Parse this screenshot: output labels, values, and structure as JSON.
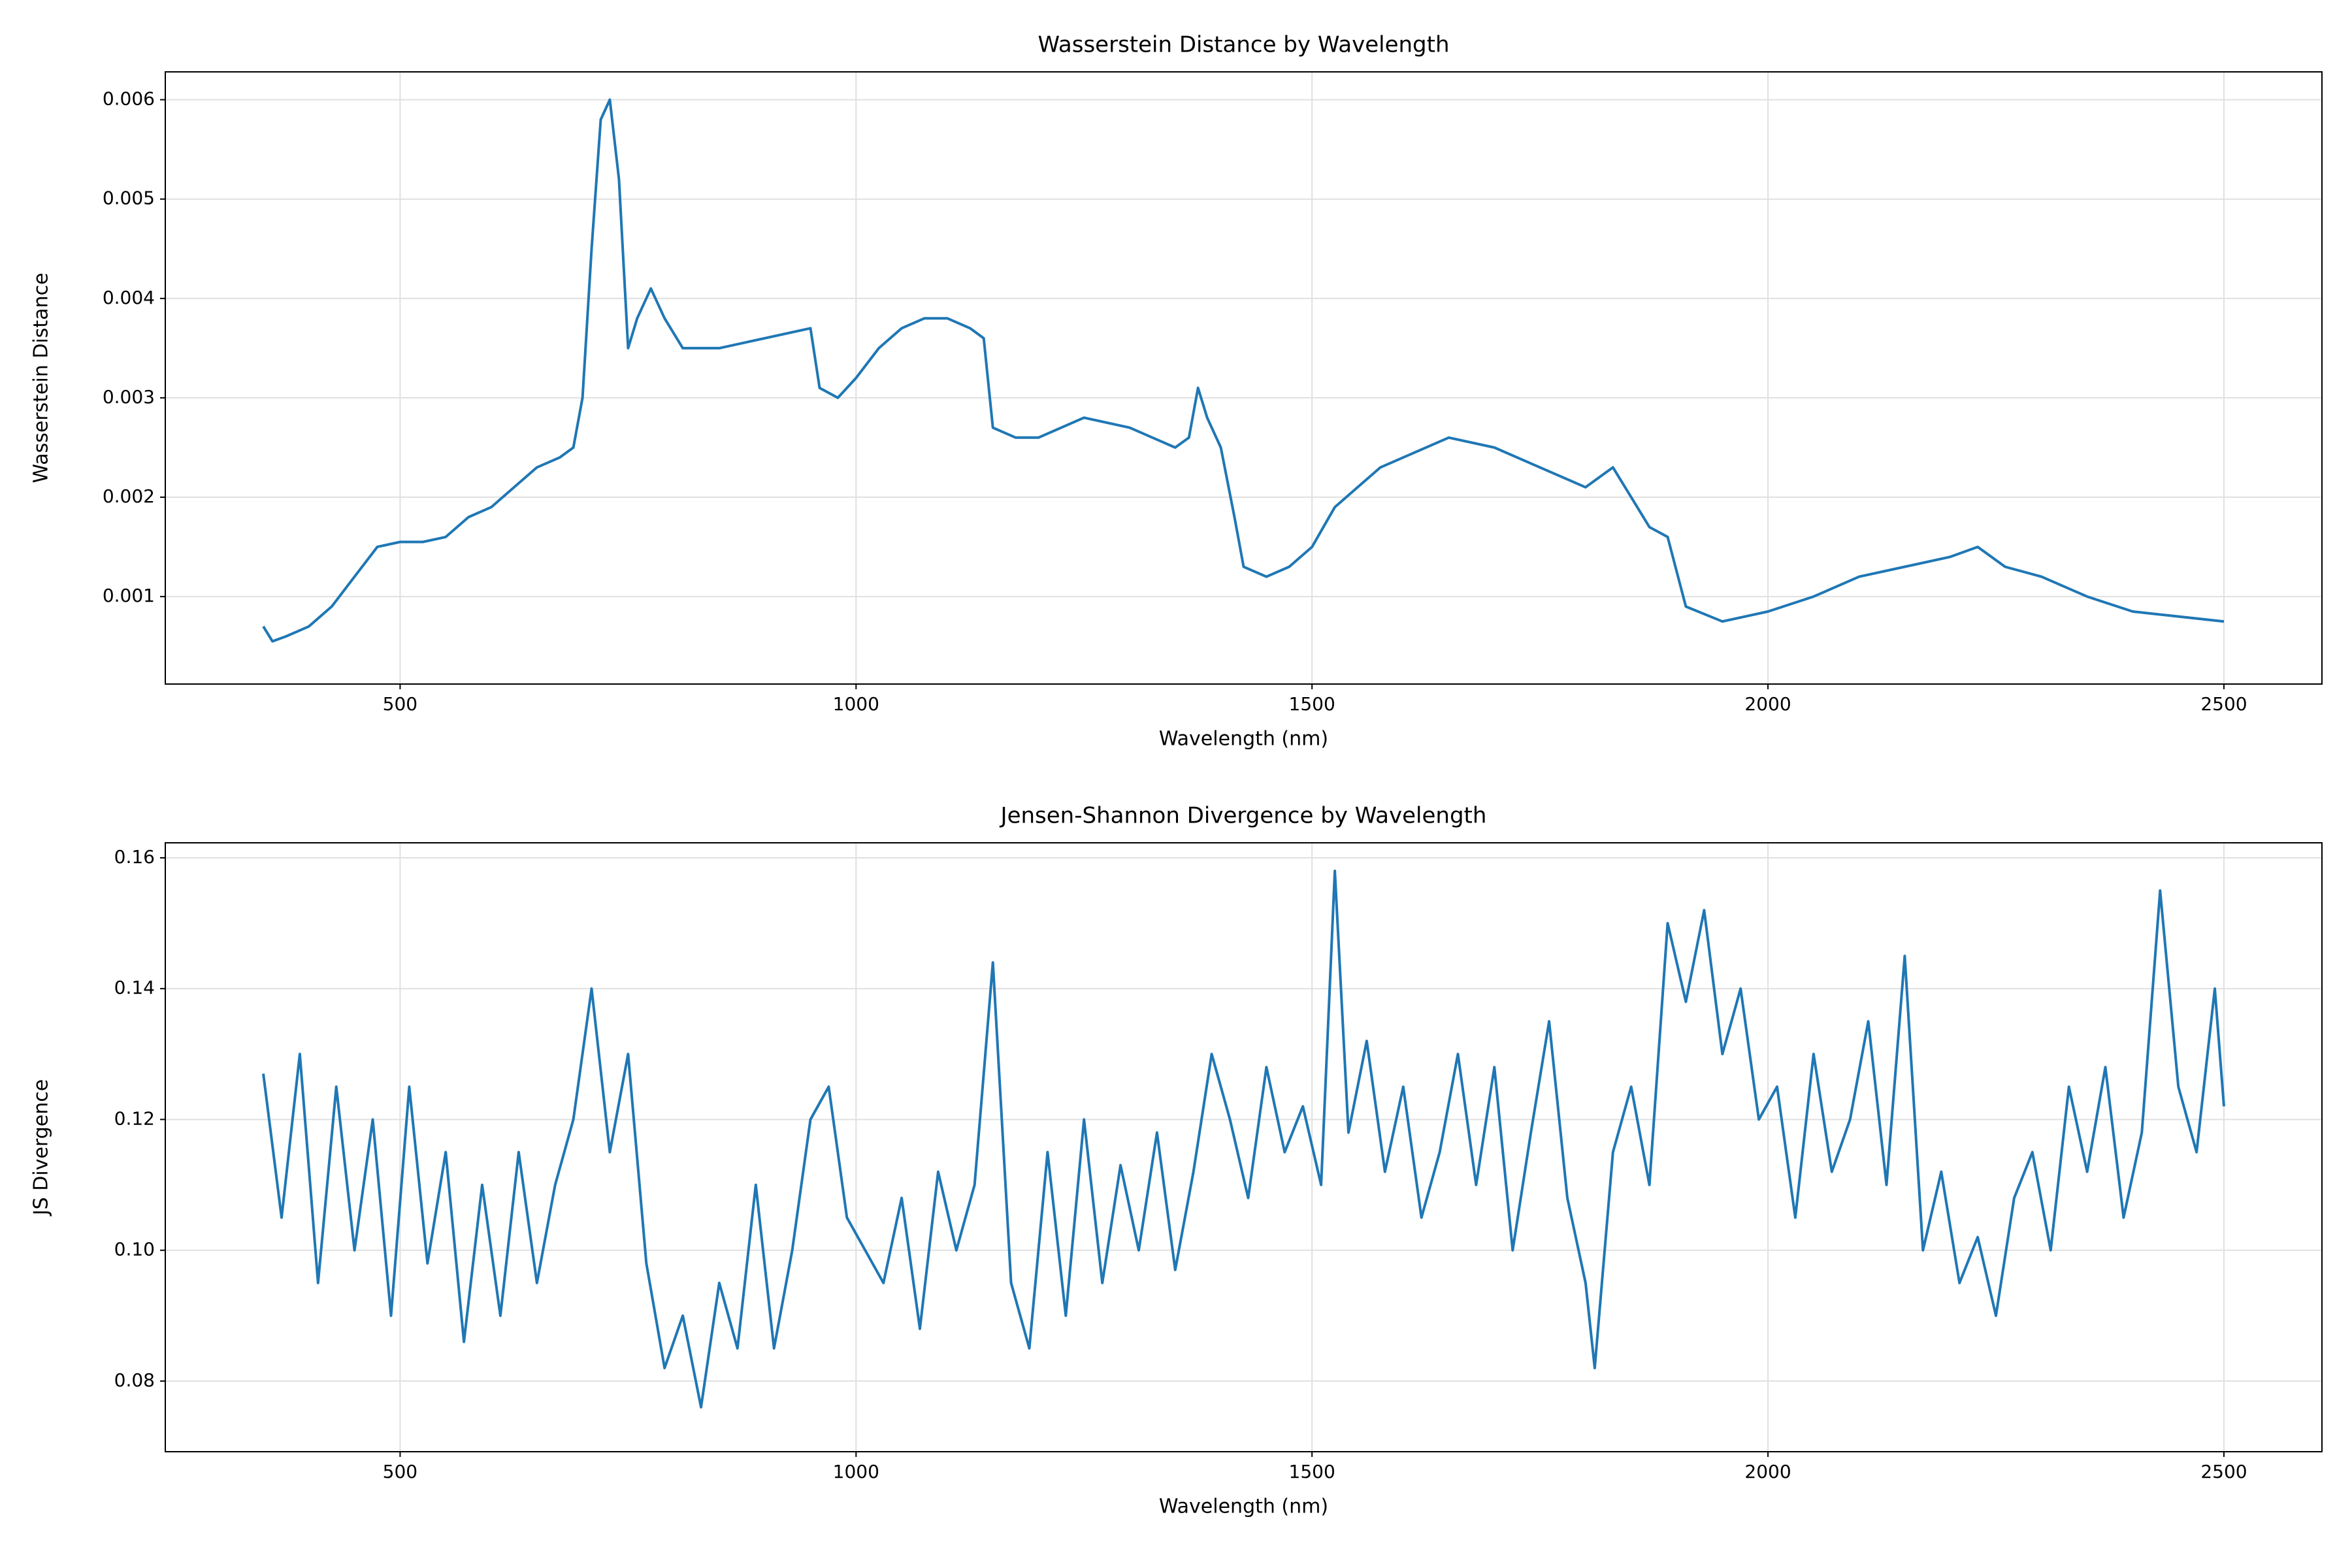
{
  "chart_data": [
    {
      "type": "line",
      "title": "Wasserstein Distance by Wavelength",
      "x_label": "Wavelength (nm)",
      "y_label": "Wasserstein Distance",
      "xlim": [
        242.5,
        2607.5
      ],
      "xticks": [
        500,
        1000,
        1500,
        2000,
        2500
      ],
      "ylim": [
        0.00012,
        0.00628
      ],
      "yticks": [
        0.001,
        0.002,
        0.003,
        0.004,
        0.005,
        0.006
      ],
      "grid": true,
      "series": [
        {
          "color": "#1f77b4",
          "x": [
            350,
            360,
            375,
            400,
            425,
            450,
            475,
            500,
            525,
            550,
            575,
            600,
            625,
            650,
            675,
            690,
            700,
            710,
            720,
            730,
            740,
            750,
            760,
            775,
            790,
            810,
            850,
            900,
            950,
            960,
            980,
            1000,
            1025,
            1050,
            1075,
            1100,
            1125,
            1140,
            1150,
            1175,
            1200,
            1250,
            1300,
            1350,
            1365,
            1375,
            1385,
            1400,
            1415,
            1425,
            1450,
            1475,
            1500,
            1525,
            1550,
            1575,
            1600,
            1650,
            1700,
            1750,
            1800,
            1830,
            1850,
            1870,
            1890,
            1910,
            1950,
            2000,
            2050,
            2100,
            2150,
            2200,
            2230,
            2260,
            2300,
            2350,
            2400,
            2450,
            2500
          ],
          "values": [
            0.0007,
            0.00055,
            0.0006,
            0.0007,
            0.0009,
            0.0012,
            0.0015,
            0.00155,
            0.00155,
            0.0016,
            0.0018,
            0.0019,
            0.0021,
            0.0023,
            0.0024,
            0.0025,
            0.003,
            0.0045,
            0.0058,
            0.006,
            0.0052,
            0.0035,
            0.0038,
            0.0041,
            0.0038,
            0.0035,
            0.0035,
            0.0036,
            0.0037,
            0.0031,
            0.003,
            0.0032,
            0.0035,
            0.0037,
            0.0038,
            0.0038,
            0.0037,
            0.0036,
            0.0027,
            0.0026,
            0.0026,
            0.0028,
            0.0027,
            0.0025,
            0.0026,
            0.0031,
            0.0028,
            0.0025,
            0.0018,
            0.0013,
            0.0012,
            0.0013,
            0.0015,
            0.0019,
            0.0021,
            0.0023,
            0.0024,
            0.0026,
            0.0025,
            0.0023,
            0.0021,
            0.0023,
            0.002,
            0.0017,
            0.0016,
            0.0009,
            0.00075,
            0.00085,
            0.001,
            0.0012,
            0.0013,
            0.0014,
            0.0015,
            0.0013,
            0.0012,
            0.001,
            0.00085,
            0.0008,
            0.00075
          ]
        }
      ]
    },
    {
      "type": "line",
      "title": "Jensen-Shannon Divergence by Wavelength",
      "x_label": "Wavelength (nm)",
      "y_label": "JS Divergence",
      "xlim": [
        242.5,
        2607.5
      ],
      "xticks": [
        500,
        1000,
        1500,
        2000,
        2500
      ],
      "ylim": [
        0.0692,
        0.1623
      ],
      "yticks": [
        0.08,
        {
          "value": 0.1,
          "label": "0.10"
        },
        0.12,
        0.14,
        0.16
      ],
      "grid": true,
      "series": [
        {
          "color": "#1f77b4",
          "x": [
            350,
            370,
            390,
            410,
            430,
            450,
            470,
            490,
            510,
            530,
            550,
            570,
            590,
            610,
            630,
            650,
            670,
            690,
            710,
            730,
            750,
            770,
            790,
            810,
            830,
            850,
            870,
            890,
            910,
            930,
            950,
            970,
            990,
            1010,
            1030,
            1050,
            1070,
            1090,
            1110,
            1130,
            1150,
            1170,
            1190,
            1210,
            1230,
            1250,
            1270,
            1290,
            1310,
            1330,
            1350,
            1370,
            1390,
            1410,
            1430,
            1450,
            1470,
            1490,
            1510,
            1525,
            1540,
            1560,
            1580,
            1600,
            1620,
            1640,
            1660,
            1680,
            1700,
            1720,
            1740,
            1760,
            1780,
            1800,
            1810,
            1830,
            1850,
            1870,
            1890,
            1910,
            1930,
            1950,
            1970,
            1990,
            2010,
            2030,
            2050,
            2070,
            2090,
            2110,
            2130,
            2150,
            2170,
            2190,
            2210,
            2230,
            2250,
            2270,
            2290,
            2310,
            2330,
            2350,
            2370,
            2390,
            2410,
            2430,
            2450,
            2470,
            2490,
            2500
          ],
          "values": [
            0.127,
            0.105,
            0.13,
            0.095,
            0.125,
            0.1,
            0.12,
            0.09,
            0.125,
            0.098,
            0.115,
            0.086,
            0.11,
            0.09,
            0.115,
            0.095,
            0.11,
            0.12,
            0.14,
            0.115,
            0.13,
            0.098,
            0.082,
            0.09,
            0.076,
            0.095,
            0.085,
            0.11,
            0.085,
            0.1,
            0.12,
            0.125,
            0.105,
            0.1,
            0.095,
            0.108,
            0.088,
            0.112,
            0.1,
            0.11,
            0.144,
            0.095,
            0.085,
            0.115,
            0.09,
            0.12,
            0.095,
            0.113,
            0.1,
            0.118,
            0.097,
            0.112,
            0.13,
            0.12,
            0.108,
            0.128,
            0.115,
            0.122,
            0.11,
            0.158,
            0.118,
            0.132,
            0.112,
            0.125,
            0.105,
            0.115,
            0.13,
            0.11,
            0.128,
            0.1,
            0.118,
            0.135,
            0.108,
            0.095,
            0.082,
            0.115,
            0.125,
            0.11,
            0.15,
            0.138,
            0.152,
            0.13,
            0.14,
            0.12,
            0.125,
            0.105,
            0.13,
            0.112,
            0.12,
            0.135,
            0.11,
            0.145,
            0.1,
            0.112,
            0.095,
            0.102,
            0.09,
            0.108,
            0.115,
            0.1,
            0.125,
            0.112,
            0.128,
            0.105,
            0.118,
            0.155,
            0.125,
            0.115,
            0.14,
            0.122
          ]
        }
      ]
    }
  ]
}
